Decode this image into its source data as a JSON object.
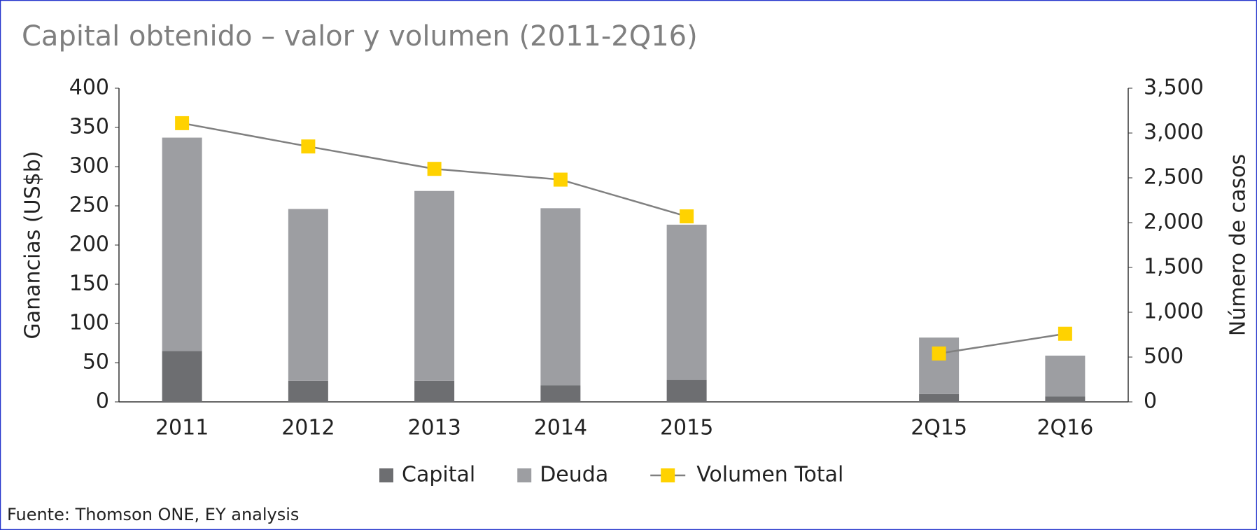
{
  "chart_data": {
    "type": "bar",
    "stacked": true,
    "title": "Capital obtenido – valor y volumen (2011-2Q16)",
    "y_label": "Ganancias (US$b)",
    "y2_label": "Número de casos",
    "source": "Fuente: Thomson ONE, EY analysis",
    "categories": [
      "2011",
      "2012",
      "2013",
      "2014",
      "2015",
      null,
      "2Q15",
      "2Q16"
    ],
    "series": [
      {
        "name": "Capital",
        "type": "bar",
        "color": "#6d6e71",
        "values": [
          65,
          27,
          27,
          21,
          28,
          null,
          10,
          7
        ]
      },
      {
        "name": "Deuda",
        "type": "bar",
        "color": "#9d9ea2",
        "values": [
          272,
          219,
          242,
          226,
          198,
          null,
          72,
          52
        ]
      },
      {
        "name": "Volumen Total",
        "type": "line",
        "axis": "y2",
        "color": "#808080",
        "marker_color": "#ffd200",
        "values": [
          3110,
          2850,
          2600,
          2480,
          2070,
          null,
          540,
          760
        ]
      }
    ],
    "ylim": [
      0,
      400
    ],
    "yticks": [
      0,
      50,
      100,
      150,
      200,
      250,
      300,
      350,
      400
    ],
    "y2lim": [
      0,
      3500
    ],
    "y2ticks": [
      0,
      {
        "value": 500,
        "label": "500"
      },
      {
        "value": 1000,
        "label": "1,000"
      },
      {
        "value": 1500,
        "label": "1,500"
      },
      {
        "value": 2000,
        "label": "2,000"
      },
      {
        "value": 2500,
        "label": "2,500"
      },
      {
        "value": 3000,
        "label": "3,000"
      },
      {
        "value": 3500,
        "label": "3,500"
      }
    ],
    "legend": "bottom",
    "grid": false
  }
}
